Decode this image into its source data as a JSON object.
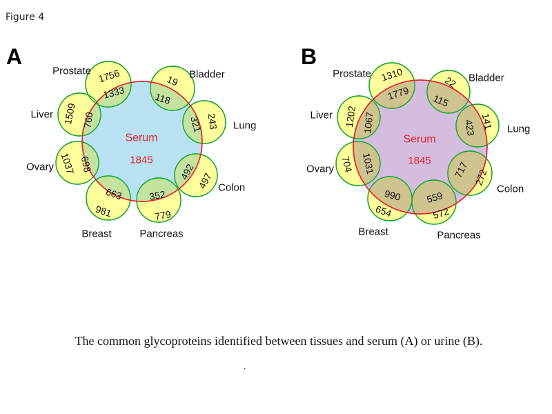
{
  "figure_label": "Figure 4",
  "caption": "The common glycoproteins identified between tissues and serum (A) or urine (B).",
  "footnote_mark": ".",
  "colors": {
    "petal_fill": "#ffff9c",
    "petal_stroke": "#1aa633",
    "center_stroke": "#e8202a",
    "center_text": "#e8202a",
    "overlap_A": "#c3e39f",
    "overlap_B": "#cfc38f",
    "center_A": "#b8e2f2",
    "center_B": "#d5bde0"
  },
  "panels": [
    {
      "letter": "A",
      "center_label": "Serum",
      "center_count": "1845",
      "petals": [
        {
          "tissue": "Prostate",
          "unique": "1756",
          "shared": "1333"
        },
        {
          "tissue": "Bladder",
          "unique": "19",
          "shared": "118"
        },
        {
          "tissue": "Lung",
          "unique": "243",
          "shared": "321"
        },
        {
          "tissue": "Colon",
          "unique": "497",
          "shared": "492"
        },
        {
          "tissue": "Pancreas",
          "unique": "779",
          "shared": "352"
        },
        {
          "tissue": "Breast",
          "unique": "981",
          "shared": "663"
        },
        {
          "tissue": "Ovary",
          "unique": "1037",
          "shared": "698"
        },
        {
          "tissue": "Liver",
          "unique": "1509",
          "shared": "760"
        }
      ]
    },
    {
      "letter": "B",
      "center_label": "Serum",
      "center_count": "1845",
      "petals": [
        {
          "tissue": "Prostate",
          "unique": "1310",
          "shared": "1779"
        },
        {
          "tissue": "Bladder",
          "unique": "22",
          "shared": "115"
        },
        {
          "tissue": "Lung",
          "unique": "141",
          "shared": "423"
        },
        {
          "tissue": "Colon",
          "unique": "272",
          "shared": "717"
        },
        {
          "tissue": "Pancreas",
          "unique": "572",
          "shared": "559"
        },
        {
          "tissue": "Breast",
          "unique": "654",
          "shared": "990"
        },
        {
          "tissue": "Ovary",
          "unique": "704",
          "shared": "1031"
        },
        {
          "tissue": "Liver",
          "unique": "1202",
          "shared": "1067"
        }
      ]
    }
  ]
}
